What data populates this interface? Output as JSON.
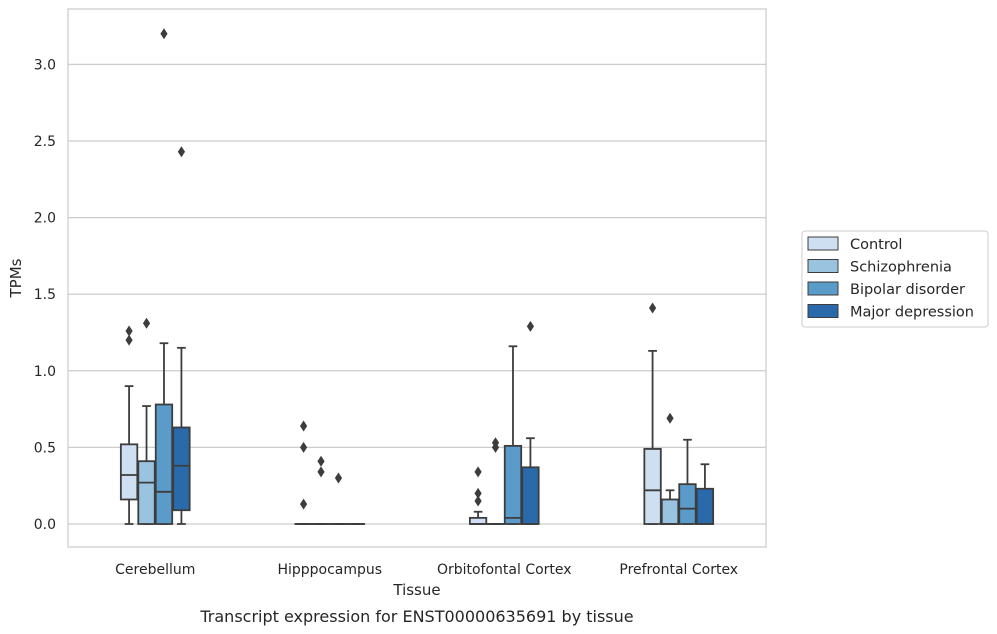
{
  "chart_data": {
    "type": "boxplot",
    "xlabel": "Tissue",
    "ylabel": "TPMs",
    "caption": "Transcript expression for ENST00000635691 by tissue",
    "ylim": [
      -0.15,
      3.38
    ],
    "y_ticks": [
      "0.0",
      "0.5",
      "1.0",
      "1.5",
      "2.0",
      "2.5",
      "3.0"
    ],
    "grid": "horizontal",
    "legend_position": "right",
    "categories": [
      "Cerebellum",
      "Hipppocampus",
      "Orbitofontal Cortex",
      "Prefrontal Cortex"
    ],
    "series": [
      {
        "name": "Control",
        "color": "#cddff0",
        "boxes": [
          {
            "whislo": 0.0,
            "q1": 0.16,
            "med": 0.32,
            "q3": 0.52,
            "whishi": 0.9,
            "fliers": [
              1.2,
              1.26
            ]
          },
          {
            "whislo": 0.0,
            "q1": 0.0,
            "med": 0.0,
            "q3": 0.0,
            "whishi": 0.0,
            "fliers": [
              0.13,
              0.5,
              0.64
            ]
          },
          {
            "whislo": 0.0,
            "q1": 0.0,
            "med": 0.0,
            "q3": 0.04,
            "whishi": 0.08,
            "fliers": [
              0.15,
              0.2,
              0.34
            ]
          },
          {
            "whislo": 0.0,
            "q1": 0.0,
            "med": 0.22,
            "q3": 0.49,
            "whishi": 1.13,
            "fliers": [
              1.41
            ]
          }
        ]
      },
      {
        "name": "Schizophrenia",
        "color": "#9ac3df",
        "boxes": [
          {
            "whislo": 0.0,
            "q1": 0.0,
            "med": 0.27,
            "q3": 0.41,
            "whishi": 0.77,
            "fliers": [
              1.31
            ]
          },
          {
            "whislo": 0.0,
            "q1": 0.0,
            "med": 0.0,
            "q3": 0.0,
            "whishi": 0.0,
            "fliers": [
              0.34,
              0.41
            ]
          },
          {
            "whislo": 0.0,
            "q1": 0.0,
            "med": 0.0,
            "q3": 0.0,
            "whishi": 0.0,
            "fliers": [
              0.5,
              0.53
            ]
          },
          {
            "whislo": 0.0,
            "q1": 0.0,
            "med": 0.0,
            "q3": 0.16,
            "whishi": 0.22,
            "fliers": [
              0.69
            ]
          }
        ]
      },
      {
        "name": "Bipolar disorder",
        "color": "#5a9bc9",
        "boxes": [
          {
            "whislo": 0.0,
            "q1": 0.0,
            "med": 0.21,
            "q3": 0.78,
            "whishi": 1.18,
            "fliers": [
              3.2
            ]
          },
          {
            "whislo": 0.0,
            "q1": 0.0,
            "med": 0.0,
            "q3": 0.0,
            "whishi": 0.0,
            "fliers": [
              0.3
            ]
          },
          {
            "whislo": 0.0,
            "q1": 0.0,
            "med": 0.04,
            "q3": 0.51,
            "whishi": 1.16,
            "fliers": []
          },
          {
            "whislo": 0.0,
            "q1": 0.0,
            "med": 0.1,
            "q3": 0.26,
            "whishi": 0.55,
            "fliers": []
          }
        ]
      },
      {
        "name": "Major depression",
        "color": "#2a69aa",
        "boxes": [
          {
            "whislo": 0.0,
            "q1": 0.09,
            "med": 0.38,
            "q3": 0.63,
            "whishi": 1.15,
            "fliers": [
              2.43
            ]
          },
          {
            "whislo": 0.0,
            "q1": 0.0,
            "med": 0.0,
            "q3": 0.0,
            "whishi": 0.0,
            "fliers": []
          },
          {
            "whislo": 0.0,
            "q1": 0.0,
            "med": 0.0,
            "q3": 0.37,
            "whishi": 0.56,
            "fliers": [
              1.29
            ]
          },
          {
            "whislo": 0.0,
            "q1": 0.0,
            "med": 0.0,
            "q3": 0.23,
            "whishi": 0.39,
            "fliers": []
          }
        ]
      }
    ]
  }
}
